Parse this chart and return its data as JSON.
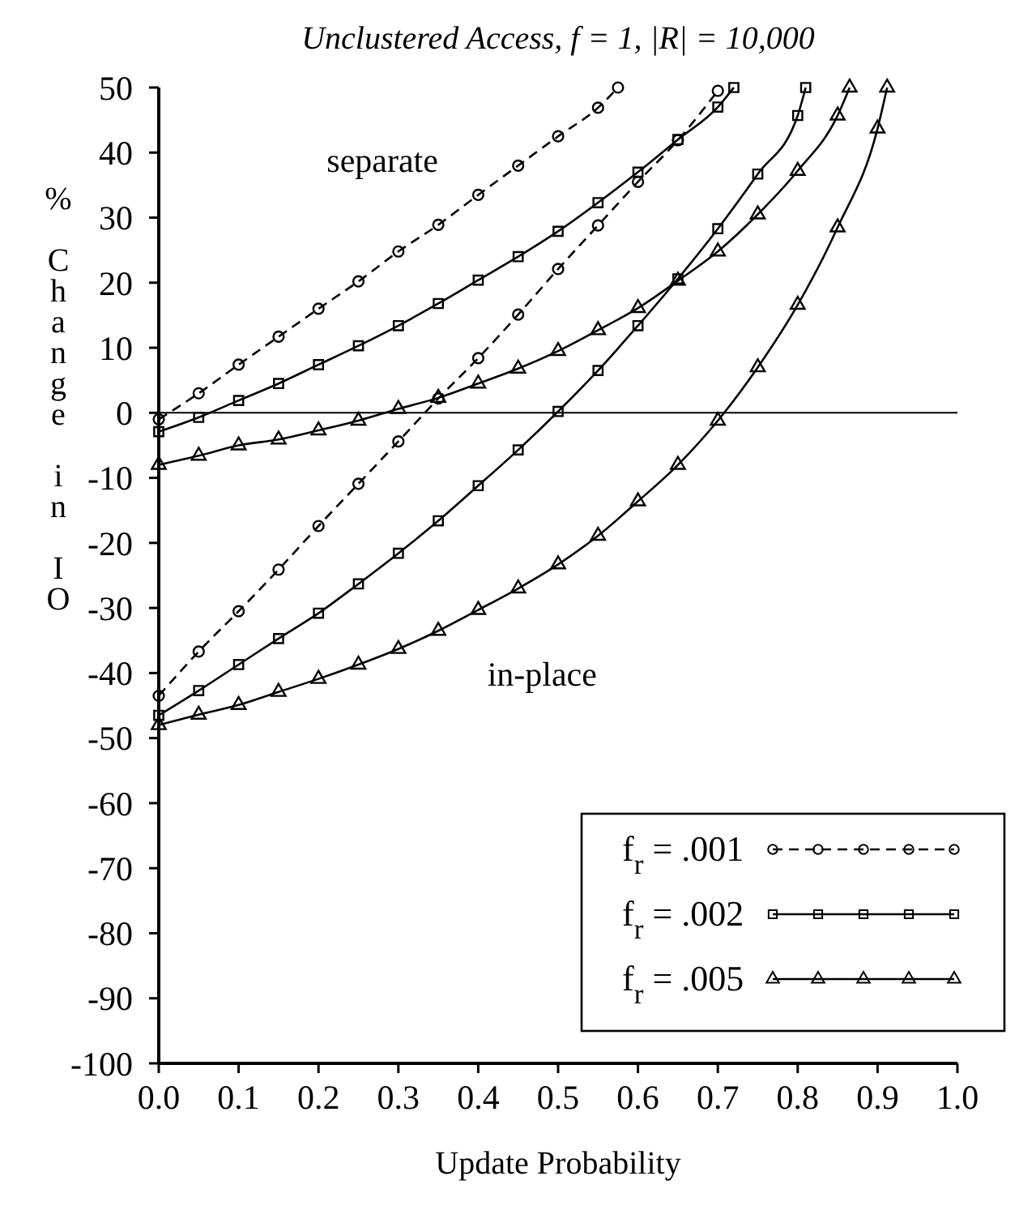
{
  "chart_data": {
    "type": "line",
    "title": "Unclustered Access, f = 1, |R| = 10,000",
    "xlabel": "Update Probability",
    "ylabel": "% Change in IO",
    "xlim": [
      0,
      1
    ],
    "xticks": [
      {
        "value": 0,
        "label": "0.0"
      },
      {
        "value": 0.1,
        "label": "0.1"
      },
      {
        "value": 0.2,
        "label": "0.2"
      },
      {
        "value": 0.3,
        "label": "0.3"
      },
      {
        "value": 0.4,
        "label": "0.4"
      },
      {
        "value": 0.5,
        "label": "0.5"
      },
      {
        "value": 0.6,
        "label": "0.6"
      },
      {
        "value": 0.7,
        "label": "0.7"
      },
      {
        "value": 0.8,
        "label": "0.8"
      },
      {
        "value": 0.9,
        "label": "0.9"
      },
      {
        "value": 1,
        "label": "1.0"
      }
    ],
    "ylim": [
      -100,
      50
    ],
    "yticks": [
      -100,
      -90,
      -80,
      -70,
      -60,
      -50,
      -40,
      -30,
      -20,
      -10,
      0,
      10,
      20,
      30,
      40,
      50
    ],
    "grid": false,
    "legend": "bottom right",
    "ref_lines": [
      {
        "axis": "y",
        "value": 0,
        "label": null,
        "color": "#000000"
      }
    ],
    "annotations": [
      "separate",
      "in-place"
    ],
    "series": [
      {
        "name": "f$_{r}$ = .001",
        "color": "#000000",
        "marker": "circle",
        "line_style": "dashed",
        "x": [
          0,
          0.05,
          0.1,
          0.15,
          0.2,
          0.25,
          0.3,
          0.35,
          0.4,
          0.45,
          0.5,
          0.55,
          0.575
        ],
        "values": [
          -1,
          3,
          7.4,
          11.7,
          16,
          20.2,
          24.8,
          28.9,
          33.5,
          38,
          42.5,
          46.9,
          50
        ]
      },
      {
        "name": "f$_{r}$ = .002",
        "color": "#000000",
        "marker": "square",
        "line_style": "solid",
        "x": [
          0,
          0.05,
          0.1,
          0.15,
          0.2,
          0.25,
          0.3,
          0.35,
          0.4,
          0.45,
          0.5,
          0.55,
          0.6,
          0.65,
          0.7,
          0.72
        ],
        "values": [
          -2.9,
          -0.7,
          1.9,
          4.5,
          7.4,
          10.3,
          13.4,
          16.8,
          20.4,
          24,
          27.9,
          32.3,
          37,
          42,
          47,
          50
        ]
      },
      {
        "name": "f$_{r}$ = .005",
        "color": "#000000",
        "marker": "triangle",
        "line_style": "solid",
        "x": [
          0,
          0.05,
          0.1,
          0.15,
          0.2,
          0.25,
          0.3,
          0.35,
          0.4,
          0.45,
          0.5,
          0.55,
          0.6,
          0.65,
          0.7,
          0.75,
          0.8,
          0.85,
          0.865
        ],
        "values": [
          -8,
          -6.6,
          -5,
          -4.1,
          -2.7,
          -1.2,
          0.6,
          2.3,
          4.5,
          6.8,
          9.5,
          12.7,
          16.1,
          20.3,
          24.8,
          30.5,
          37.2,
          45.7,
          50
        ]
      },
      {
        "color": "#000000",
        "marker": "circle",
        "line_style": "dashed",
        "x": [
          0,
          0.05,
          0.1,
          0.15,
          0.2,
          0.25,
          0.3,
          0.35,
          0.4,
          0.45,
          0.5,
          0.55,
          0.6,
          0.65,
          0.7
        ],
        "values": [
          -43.5,
          -36.7,
          -30.5,
          -24.1,
          -17.4,
          -10.9,
          -4.4,
          2.2,
          8.4,
          15.1,
          22.1,
          28.8,
          35.5,
          41.9,
          49.5
        ]
      },
      {
        "color": "#000000",
        "marker": "square",
        "line_style": "solid",
        "x": [
          0,
          0.05,
          0.1,
          0.15,
          0.2,
          0.25,
          0.3,
          0.35,
          0.4,
          0.45,
          0.5,
          0.55,
          0.6,
          0.65,
          0.7,
          0.75,
          0.8,
          0.81
        ],
        "values": [
          -46.5,
          -42.7,
          -38.7,
          -34.7,
          -30.8,
          -26.3,
          -21.6,
          -16.6,
          -11.2,
          -5.7,
          0.2,
          6.5,
          13.4,
          20.6,
          28.3,
          36.7,
          45.7,
          50
        ]
      },
      {
        "color": "#000000",
        "marker": "triangle",
        "line_style": "solid",
        "x": [
          0,
          0.05,
          0.1,
          0.15,
          0.2,
          0.25,
          0.3,
          0.35,
          0.4,
          0.45,
          0.5,
          0.55,
          0.6,
          0.65,
          0.7,
          0.75,
          0.8,
          0.85,
          0.9,
          0.912
        ],
        "values": [
          -48,
          -46.4,
          -44.9,
          -42.9,
          -40.9,
          -38.7,
          -36.3,
          -33.5,
          -30.3,
          -27,
          -23.3,
          -18.9,
          -13.6,
          -8,
          -1.2,
          7,
          16.6,
          28.5,
          43.7,
          50
        ]
      }
    ]
  }
}
